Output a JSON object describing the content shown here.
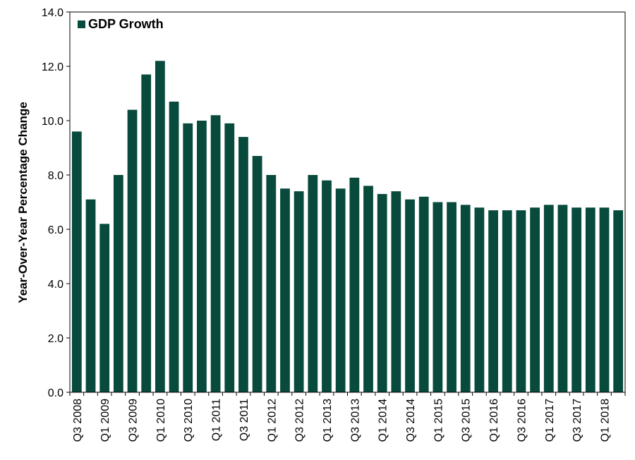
{
  "chart_data": {
    "type": "bar",
    "ylabel": "Year-Over-Year Percentage Change",
    "ylim": [
      0,
      14
    ],
    "yticks": [
      "0.0",
      "2.0",
      "4.0",
      "6.0",
      "8.0",
      "10.0",
      "12.0",
      "14.0"
    ],
    "grid": false,
    "legend_position": "top-left",
    "colors": {
      "bar": "#084a3c",
      "axis": "#000000"
    },
    "categories": [
      "Q3 2008",
      "Q4 2008",
      "Q1 2009",
      "Q2 2009",
      "Q3 2009",
      "Q4 2009",
      "Q1 2010",
      "Q2 2010",
      "Q3 2010",
      "Q4 2010",
      "Q1 2011",
      "Q2 2011",
      "Q3 2011",
      "Q4 2011",
      "Q1 2012",
      "Q2 2012",
      "Q3 2012",
      "Q4 2012",
      "Q1 2013",
      "Q2 2013",
      "Q3 2013",
      "Q4 2013",
      "Q1 2014",
      "Q2 2014",
      "Q3 2014",
      "Q4 2014",
      "Q1 2015",
      "Q2 2015",
      "Q3 2015",
      "Q4 2015",
      "Q1 2016",
      "Q2 2016",
      "Q3 2016",
      "Q4 2016",
      "Q1 2017",
      "Q2 2017",
      "Q3 2017",
      "Q4 2017",
      "Q1 2018",
      "Q2 2018"
    ],
    "visible_category_labels": [
      "Q3 2008",
      "Q1 2009",
      "Q3 2009",
      "Q1 2010",
      "Q3 2010",
      "Q1 2011",
      "Q3 2011",
      "Q1 2012",
      "Q3 2012",
      "Q1 2013",
      "Q3 2013",
      "Q1 2014",
      "Q3 2014",
      "Q1 2015",
      "Q3 2015",
      "Q1 2016",
      "Q3 2016",
      "Q1 2017",
      "Q3 2017",
      "Q1 2018"
    ],
    "series": [
      {
        "name": "GDP Growth",
        "values": [
          9.6,
          7.1,
          6.2,
          8.0,
          10.4,
          11.7,
          12.2,
          10.7,
          9.9,
          10.0,
          10.2,
          9.9,
          9.4,
          8.7,
          8.0,
          7.5,
          7.4,
          8.0,
          7.8,
          7.5,
          7.9,
          7.6,
          7.3,
          7.4,
          7.1,
          7.2,
          7.0,
          7.0,
          6.9,
          6.8,
          6.7,
          6.7,
          6.7,
          6.8,
          6.9,
          6.9,
          6.8,
          6.8,
          6.8,
          6.7
        ]
      }
    ]
  }
}
